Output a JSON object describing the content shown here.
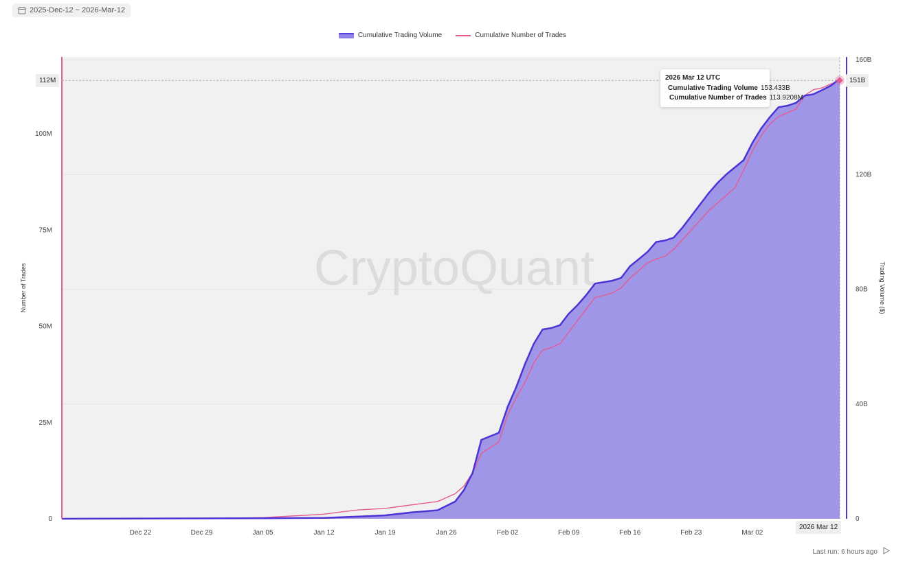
{
  "header": {
    "date_range": "2025-Dec-12 ~ 2026-Mar-12",
    "icon": "calendar-icon"
  },
  "footer": {
    "last_run": "Last run: 6 hours ago",
    "icon": "play-icon"
  },
  "tooltip": {
    "title": "2026 Mar 12 UTC",
    "rows": [
      {
        "name": "Cumulative Trading Volume",
        "value": "153.433B"
      },
      {
        "name": "Cumulative Number of Trades",
        "value": "113.9208M"
      }
    ]
  },
  "pointer_labels": {
    "left": "112M",
    "right": "151B",
    "bottom": "2026 Mar 12"
  },
  "watermark": "CryptoQuant",
  "colors": {
    "volume_fill": "#9f96e7",
    "volume_line": "#4b33d6",
    "trades_line": "#e45c92",
    "plot_bg": "#f1f1f1"
  },
  "chart_data": {
    "type": "area",
    "x_start": "2025-12-13",
    "x_end": "2026-03-12",
    "x_tick_labels": [
      "Dec 22",
      "Dec 29",
      "Jan 05",
      "Jan 12",
      "Jan 19",
      "Jan 26",
      "Feb 02",
      "Feb 09",
      "Feb 16",
      "Feb 23",
      "Mar 02"
    ],
    "x_tick_dates": [
      "2025-12-22",
      "2025-12-29",
      "2026-01-05",
      "2026-01-12",
      "2026-01-19",
      "2026-01-26",
      "2026-02-02",
      "2026-02-09",
      "2026-02-16",
      "2026-02-23",
      "2026-03-02"
    ],
    "left_axis": {
      "label": "Number of Trades",
      "ticks": [
        "0",
        "25M",
        "50M",
        "75M",
        "100M"
      ],
      "tick_values": [
        0,
        25,
        50,
        75,
        100
      ],
      "range": [
        0,
        120
      ]
    },
    "right_axis": {
      "label": "Trading Volume ($)",
      "ticks": [
        "0",
        "40B",
        "80B",
        "120B",
        "160B"
      ],
      "tick_values": [
        0,
        40,
        80,
        120,
        160
      ],
      "range": [
        0,
        161
      ]
    },
    "legend_position": "top-center",
    "series": [
      {
        "name": "Cumulative Trading Volume",
        "kind": "area",
        "axis": "right",
        "unit": "B",
        "points": [
          [
            "2025-12-13",
            0.0
          ],
          [
            "2026-01-05",
            0.2
          ],
          [
            "2026-01-12",
            0.3
          ],
          [
            "2026-01-16",
            0.8
          ],
          [
            "2026-01-19",
            1.2
          ],
          [
            "2026-01-22",
            2.2
          ],
          [
            "2026-01-25",
            3.0
          ],
          [
            "2026-01-27",
            6.0
          ],
          [
            "2026-01-28",
            10.0
          ],
          [
            "2026-01-29",
            16.0
          ],
          [
            "2026-01-30",
            27.5
          ],
          [
            "2026-02-01",
            30.0
          ],
          [
            "2026-02-02",
            39.0
          ],
          [
            "2026-02-03",
            46.0
          ],
          [
            "2026-02-04",
            54.0
          ],
          [
            "2026-02-05",
            61.0
          ],
          [
            "2026-02-06",
            66.0
          ],
          [
            "2026-02-07",
            66.5
          ],
          [
            "2026-02-08",
            67.5
          ],
          [
            "2026-02-09",
            71.5
          ],
          [
            "2026-02-10",
            74.5
          ],
          [
            "2026-02-11",
            78.0
          ],
          [
            "2026-02-12",
            82.0
          ],
          [
            "2026-02-13",
            82.5
          ],
          [
            "2026-02-14",
            83.0
          ],
          [
            "2026-02-15",
            84.0
          ],
          [
            "2026-02-16",
            88.0
          ],
          [
            "2026-02-17",
            90.5
          ],
          [
            "2026-02-18",
            93.0
          ],
          [
            "2026-02-19",
            96.5
          ],
          [
            "2026-02-20",
            97.0
          ],
          [
            "2026-02-21",
            98.0
          ],
          [
            "2026-02-22",
            101.5
          ],
          [
            "2026-02-23",
            105.5
          ],
          [
            "2026-02-24",
            109.5
          ],
          [
            "2026-02-25",
            113.5
          ],
          [
            "2026-02-26",
            117.0
          ],
          [
            "2026-02-27",
            120.0
          ],
          [
            "2026-02-28",
            122.5
          ],
          [
            "2026-03-01",
            125.0
          ],
          [
            "2026-03-02",
            131.0
          ],
          [
            "2026-03-03",
            136.0
          ],
          [
            "2026-03-04",
            140.0
          ],
          [
            "2026-03-05",
            143.5
          ],
          [
            "2026-03-06",
            144.0
          ],
          [
            "2026-03-07",
            145.0
          ],
          [
            "2026-03-08",
            147.5
          ],
          [
            "2026-03-09",
            148.0
          ],
          [
            "2026-03-10",
            149.5
          ],
          [
            "2026-03-11",
            151.0
          ],
          [
            "2026-03-12",
            153.433
          ]
        ]
      },
      {
        "name": "Cumulative Number of Trades",
        "kind": "line",
        "axis": "left",
        "unit": "M",
        "points": [
          [
            "2025-12-13",
            0.0
          ],
          [
            "2025-12-29",
            0.1
          ],
          [
            "2026-01-05",
            0.3
          ],
          [
            "2026-01-09",
            0.8
          ],
          [
            "2026-01-12",
            1.2
          ],
          [
            "2026-01-14",
            1.8
          ],
          [
            "2026-01-16",
            2.3
          ],
          [
            "2026-01-19",
            2.7
          ],
          [
            "2026-01-21",
            3.3
          ],
          [
            "2026-01-23",
            3.9
          ],
          [
            "2026-01-25",
            4.5
          ],
          [
            "2026-01-27",
            6.5
          ],
          [
            "2026-01-28",
            8.5
          ],
          [
            "2026-01-29",
            12.0
          ],
          [
            "2026-01-30",
            17.0
          ],
          [
            "2026-02-01",
            20.0
          ],
          [
            "2026-02-02",
            27.0
          ],
          [
            "2026-02-03",
            31.5
          ],
          [
            "2026-02-04",
            35.5
          ],
          [
            "2026-02-05",
            40.5
          ],
          [
            "2026-02-06",
            43.8
          ],
          [
            "2026-02-07",
            44.5
          ],
          [
            "2026-02-08",
            45.5
          ],
          [
            "2026-02-09",
            48.5
          ],
          [
            "2026-02-10",
            51.5
          ],
          [
            "2026-02-11",
            54.5
          ],
          [
            "2026-02-12",
            57.5
          ],
          [
            "2026-02-13",
            58.0
          ],
          [
            "2026-02-14",
            58.7
          ],
          [
            "2026-02-15",
            60.0
          ],
          [
            "2026-02-16",
            62.5
          ],
          [
            "2026-02-17",
            64.5
          ],
          [
            "2026-02-18",
            66.5
          ],
          [
            "2026-02-19",
            67.5
          ],
          [
            "2026-02-20",
            68.2
          ],
          [
            "2026-02-21",
            70.0
          ],
          [
            "2026-02-22",
            72.5
          ],
          [
            "2026-02-23",
            75.0
          ],
          [
            "2026-02-24",
            77.5
          ],
          [
            "2026-02-25",
            80.0
          ],
          [
            "2026-02-26",
            82.0
          ],
          [
            "2026-02-27",
            84.0
          ],
          [
            "2026-02-28",
            86.0
          ],
          [
            "2026-03-01",
            90.5
          ],
          [
            "2026-03-02",
            95.5
          ],
          [
            "2026-03-03",
            99.5
          ],
          [
            "2026-03-04",
            102.5
          ],
          [
            "2026-03-05",
            104.5
          ],
          [
            "2026-03-06",
            105.5
          ],
          [
            "2026-03-07",
            106.5
          ],
          [
            "2026-03-08",
            110.0
          ],
          [
            "2026-03-09",
            111.5
          ],
          [
            "2026-03-10",
            112.0
          ],
          [
            "2026-03-11",
            113.0
          ],
          [
            "2026-03-12",
            113.9208
          ]
        ]
      }
    ]
  }
}
